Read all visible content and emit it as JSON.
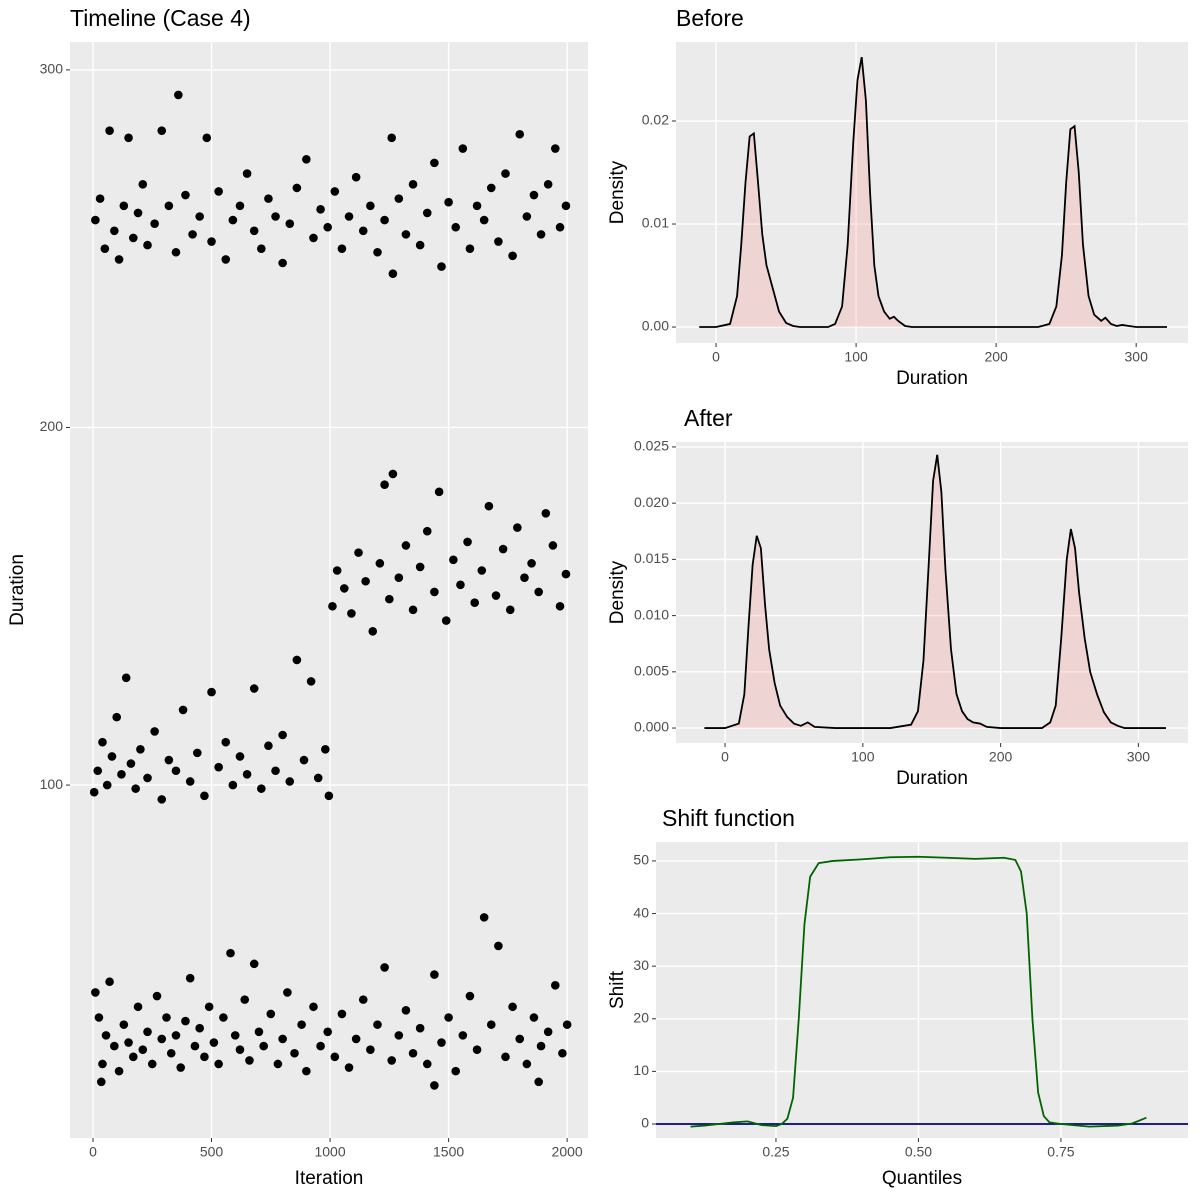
{
  "chart_data": [
    {
      "type": "scatter",
      "title": "Timeline (Case 4)",
      "x_label": "Iteration",
      "y_label": "Duration",
      "color": "#000000",
      "grid": true,
      "xlim": [
        -97,
        2088
      ],
      "ylim": [
        1.3,
        307.8
      ],
      "xticks": [
        0,
        500,
        1000,
        1500,
        2000
      ],
      "yticks": [
        100,
        200,
        300
      ],
      "x": [
        10,
        25,
        40,
        55,
        70,
        90,
        110,
        130,
        150,
        170,
        190,
        210,
        230,
        250,
        270,
        290,
        310,
        330,
        350,
        370,
        390,
        410,
        430,
        450,
        470,
        490,
        510,
        530,
        550,
        580,
        600,
        620,
        640,
        660,
        680,
        700,
        720,
        750,
        780,
        800,
        820,
        850,
        880,
        900,
        930,
        960,
        990,
        1020,
        1050,
        1080,
        1110,
        1140,
        1170,
        1200,
        1230,
        1260,
        1290,
        1320,
        1350,
        1380,
        1410,
        1440,
        1470,
        1500,
        1530,
        1560,
        1590,
        1620,
        1650,
        1680,
        1710,
        1740,
        1770,
        1800,
        1830,
        1860,
        1890,
        1920,
        1950,
        1980,
        2000,
        35,
        1440,
        1880,
        5,
        20,
        40,
        60,
        80,
        100,
        120,
        140,
        160,
        180,
        200,
        230,
        260,
        290,
        320,
        350,
        380,
        410,
        440,
        470,
        500,
        530,
        560,
        590,
        620,
        650,
        680,
        710,
        740,
        770,
        800,
        830,
        860,
        890,
        920,
        950,
        980,
        995,
        1010,
        1030,
        1060,
        1090,
        1120,
        1150,
        1180,
        1210,
        1230,
        1250,
        1265,
        1290,
        1320,
        1350,
        1380,
        1410,
        1440,
        1460,
        1490,
        1520,
        1550,
        1580,
        1610,
        1640,
        1670,
        1700,
        1730,
        1760,
        1790,
        1820,
        1850,
        1880,
        1910,
        1940,
        1970,
        1995,
        10,
        30,
        50,
        70,
        90,
        110,
        130,
        150,
        170,
        190,
        210,
        230,
        260,
        290,
        320,
        350,
        360,
        390,
        420,
        450,
        480,
        500,
        530,
        560,
        590,
        620,
        650,
        680,
        710,
        740,
        770,
        800,
        830,
        860,
        900,
        930,
        960,
        990,
        1020,
        1050,
        1080,
        1110,
        1140,
        1170,
        1200,
        1230,
        1260,
        1265,
        1290,
        1320,
        1350,
        1380,
        1410,
        1440,
        1470,
        1500,
        1530,
        1560,
        1590,
        1620,
        1650,
        1680,
        1710,
        1740,
        1770,
        1800,
        1830,
        1860,
        1890,
        1920,
        1950,
        1970,
        1995
      ],
      "values": [
        42,
        35,
        22,
        30,
        45,
        27,
        20,
        33,
        28,
        24,
        38,
        26,
        31,
        22,
        41,
        29,
        35,
        25,
        30,
        21,
        34,
        46,
        27,
        32,
        24,
        38,
        28,
        22,
        35,
        53,
        30,
        26,
        40,
        23,
        50,
        31,
        27,
        36,
        22,
        29,
        42,
        25,
        33,
        20,
        38,
        27,
        31,
        24,
        36,
        21,
        29,
        40,
        26,
        33,
        49,
        23,
        30,
        37,
        25,
        32,
        22,
        47,
        28,
        35,
        20,
        30,
        41,
        26,
        63,
        33,
        55,
        24,
        38,
        29,
        22,
        35,
        27,
        31,
        44,
        25,
        33,
        17,
        16,
        17,
        98,
        104,
        112,
        100,
        108,
        119,
        103,
        130,
        106,
        99,
        110,
        102,
        115,
        96,
        107,
        104,
        121,
        101,
        109,
        97,
        126,
        105,
        112,
        100,
        108,
        103,
        127,
        99,
        111,
        104,
        114,
        101,
        135,
        107,
        129,
        102,
        110,
        97,
        150,
        160,
        155,
        148,
        165,
        157,
        143,
        162,
        184,
        152,
        187,
        158,
        167,
        149,
        161,
        171,
        154,
        182,
        146,
        163,
        156,
        168,
        151,
        160,
        178,
        153,
        166,
        149,
        172,
        158,
        162,
        154,
        176,
        167,
        150,
        159,
        258,
        264,
        250,
        283,
        255,
        247,
        262,
        281,
        253,
        260,
        268,
        251,
        257,
        283,
        262,
        249,
        293,
        265,
        254,
        259,
        281,
        252,
        266,
        247,
        258,
        262,
        271,
        255,
        250,
        264,
        259,
        246,
        257,
        267,
        275,
        253,
        261,
        256,
        266,
        250,
        259,
        270,
        255,
        262,
        249,
        258,
        281,
        243,
        264,
        254,
        268,
        251,
        260,
        274,
        245,
        263,
        256,
        278,
        250,
        262,
        258,
        267,
        252,
        271,
        248,
        282,
        259,
        265,
        254,
        268,
        278,
        256,
        262
      ]
    },
    {
      "type": "area",
      "title": "Before",
      "x_label": "Duration",
      "y_label": "Density",
      "fill": "#f8766d",
      "line_color": "#000000",
      "grid": true,
      "xlim": [
        -28.6,
        337
      ],
      "ylim": [
        -0.00155,
        0.02767
      ],
      "xticks": [
        0,
        100,
        200,
        300
      ],
      "yticks": [
        {
          "value": 0,
          "label": "0.00"
        },
        {
          "value": 0.01,
          "label": "0.01"
        },
        {
          "value": 0.02,
          "label": "0.02"
        }
      ],
      "x": [
        -12,
        0,
        10,
        15,
        18,
        21,
        24,
        27,
        30,
        33,
        36,
        40,
        45,
        50,
        55,
        60,
        70,
        80,
        85,
        90,
        94,
        98,
        101,
        104,
        107,
        110,
        113,
        116,
        120,
        124,
        127,
        130,
        135,
        140,
        150,
        200,
        230,
        238,
        243,
        247,
        250,
        253,
        256,
        259,
        262,
        266,
        270,
        275,
        278,
        282,
        286,
        290,
        295,
        300,
        322
      ],
      "values": [
        0,
        0,
        0.0003,
        0.003,
        0.008,
        0.014,
        0.0185,
        0.0188,
        0.014,
        0.009,
        0.006,
        0.004,
        0.0015,
        0.0004,
        0.0001,
        0,
        0,
        0,
        0.0003,
        0.002,
        0.008,
        0.018,
        0.024,
        0.0262,
        0.022,
        0.013,
        0.006,
        0.003,
        0.0015,
        0.0008,
        0.001,
        0.0006,
        0.0001,
        0,
        0,
        0,
        0,
        0.0003,
        0.002,
        0.007,
        0.014,
        0.0192,
        0.0195,
        0.015,
        0.008,
        0.003,
        0.0012,
        0.0006,
        0.0009,
        0.0003,
        0.0001,
        0.0002,
        0.0001,
        0,
        0
      ]
    },
    {
      "type": "area",
      "title": "After",
      "x_label": "Duration",
      "y_label": "Density",
      "fill": "#f8766d",
      "line_color": "#000000",
      "grid": true,
      "xlim": [
        -35.6,
        336
      ],
      "ylim": [
        -0.00133,
        0.02544
      ],
      "xticks": [
        0,
        100,
        200,
        300
      ],
      "yticks": [
        {
          "value": 0,
          "label": "0.000"
        },
        {
          "value": 0.005,
          "label": "0.005"
        },
        {
          "value": 0.01,
          "label": "0.010"
        },
        {
          "value": 0.015,
          "label": "0.015"
        },
        {
          "value": 0.02,
          "label": "0.020"
        },
        {
          "value": 0.025,
          "label": "0.025"
        }
      ],
      "x": [
        -15,
        0,
        10,
        14,
        17,
        20,
        23,
        26,
        29,
        32,
        36,
        40,
        45,
        50,
        55,
        60,
        65,
        80,
        120,
        135,
        140,
        144,
        148,
        151,
        154,
        157,
        160,
        164,
        168,
        172,
        176,
        180,
        185,
        190,
        200,
        230,
        236,
        240,
        244,
        248,
        251,
        254,
        257,
        261,
        265,
        270,
        275,
        280,
        285,
        290,
        320
      ],
      "values": [
        0,
        0,
        0.0004,
        0.003,
        0.009,
        0.0145,
        0.0171,
        0.016,
        0.011,
        0.007,
        0.004,
        0.002,
        0.001,
        0.0004,
        0.0002,
        0.0005,
        0.0001,
        0,
        0,
        0.0003,
        0.0015,
        0.006,
        0.015,
        0.022,
        0.0243,
        0.021,
        0.014,
        0.007,
        0.003,
        0.0015,
        0.0008,
        0.0005,
        0.0004,
        0.0001,
        0,
        0,
        0.0005,
        0.002,
        0.008,
        0.015,
        0.0177,
        0.016,
        0.012,
        0.008,
        0.005,
        0.003,
        0.0014,
        0.0005,
        0.0002,
        0,
        0
      ]
    },
    {
      "type": "line",
      "title": "Shift function",
      "x_label": "Quantiles",
      "y_label": "Shift",
      "color": "#006400",
      "hline": 0,
      "hline_color": "#00007f",
      "grid": true,
      "xlim": [
        0.0395,
        0.973
      ],
      "ylim": [
        -2.66,
        53.6
      ],
      "xticks": [
        0.25,
        {
          "value": 0.5,
          "label": "0.50"
        },
        0.75
      ],
      "yticks": [
        0,
        10,
        20,
        30,
        40,
        50
      ],
      "x": [
        0.1,
        0.125,
        0.15,
        0.175,
        0.2,
        0.225,
        0.25,
        0.26,
        0.27,
        0.28,
        0.29,
        0.3,
        0.31,
        0.325,
        0.35,
        0.4,
        0.45,
        0.5,
        0.55,
        0.6,
        0.65,
        0.67,
        0.68,
        0.69,
        0.7,
        0.71,
        0.72,
        0.73,
        0.75,
        0.8,
        0.85,
        0.875,
        0.9
      ],
      "values": [
        -0.5,
        -0.3,
        0,
        0.3,
        0.5,
        -0.2,
        -0.4,
        0,
        1,
        5,
        20,
        38,
        47,
        49.6,
        50,
        50.3,
        50.7,
        50.8,
        50.6,
        50.4,
        50.6,
        50.2,
        48,
        40,
        20,
        6,
        1.5,
        0.3,
        0,
        -0.5,
        -0.3,
        0.1,
        1.2
      ]
    }
  ]
}
